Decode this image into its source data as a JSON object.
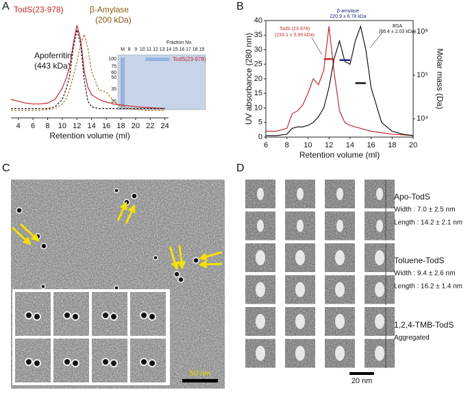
{
  "panel_labels": [
    "A",
    "B",
    "C",
    "D"
  ],
  "chart_data": [
    {
      "type": "line",
      "xlabel": "Retention volume (ml)",
      "x": [
        3,
        4,
        5,
        6,
        7,
        8,
        9,
        10,
        10.5,
        11,
        11.5,
        12,
        12.5,
        13,
        13.5,
        14,
        15,
        16,
        17,
        18,
        20,
        22,
        24
      ],
      "xlim": [
        3,
        24.5
      ],
      "xticks": [
        4,
        6,
        8,
        10,
        12,
        14,
        16,
        18,
        20,
        22,
        24
      ],
      "ylim": [
        0,
        1.05
      ],
      "series": [
        {
          "color": "#c0282d",
          "line_style": "solid",
          "values": [
            0.2,
            0.18,
            0.16,
            0.15,
            0.15,
            0.16,
            0.2,
            0.32,
            0.42,
            0.55,
            0.8,
            1.0,
            0.85,
            0.5,
            0.33,
            0.25,
            0.2,
            0.17,
            0.15,
            0.14,
            0.12,
            0.11,
            0.1
          ]
        },
        {
          "color": "#111111",
          "line_style": "dashed",
          "values": [
            0.1,
            0.1,
            0.1,
            0.1,
            0.1,
            0.1,
            0.12,
            0.2,
            0.3,
            0.45,
            0.75,
            0.95,
            0.8,
            0.4,
            0.18,
            0.12,
            0.1,
            0.1,
            0.1,
            0.1,
            0.1,
            0.1,
            0.1
          ]
        },
        {
          "color": "#a8741a",
          "line_style": "dashed",
          "values": [
            0.08,
            0.08,
            0.08,
            0.08,
            0.08,
            0.09,
            0.1,
            0.15,
            0.2,
            0.3,
            0.45,
            0.6,
            0.8,
            0.9,
            0.75,
            0.5,
            0.3,
            0.28,
            0.18,
            0.12,
            0.09,
            0.08,
            0.08
          ]
        }
      ],
      "annotations": [
        "TodS(23-978)",
        "β-Amylase",
        "(200 kDa)",
        "Apoferritin",
        "(443 kDa)"
      ],
      "gel": {
        "title": "Fraction No.",
        "lanes": [
          "M",
          "8",
          "9",
          "10",
          "11",
          "12",
          "13",
          "14",
          "15",
          "16",
          "17",
          "18",
          "19"
        ],
        "markers": [
          "100",
          "75",
          "60",
          "50",
          "35",
          "25"
        ],
        "label": "TodS(23-978)"
      }
    },
    {
      "type": "line",
      "xlabel": "Retention volume (ml)",
      "ylabel": "UV absorbance (280 nm)",
      "y2label": "Molar mass (Da)",
      "x": [
        6,
        7,
        8,
        8.5,
        9,
        9.5,
        10,
        10.5,
        11,
        11.5,
        12,
        12.5,
        13,
        13.5,
        14,
        14.5,
        15,
        15.5,
        16,
        17,
        18,
        19,
        20
      ],
      "xlim": [
        6,
        20
      ],
      "xticks": [
        6,
        8,
        10,
        12,
        14,
        16,
        18,
        20
      ],
      "ylim": [
        0,
        40
      ],
      "yticks": [
        0,
        5,
        10,
        15,
        20,
        25,
        30,
        35,
        40
      ],
      "y2lim": [
        3800,
        1780000
      ],
      "y2_scale": "log",
      "y2ticks": [
        {
          "value": 10000,
          "label": "10⁴"
        },
        {
          "value": 100000,
          "label": "10⁵"
        },
        {
          "value": 1000000,
          "label": "10⁶"
        }
      ],
      "series": [
        {
          "color": "#c0282d",
          "line_style": "solid",
          "values": [
            2,
            2,
            3,
            8,
            9,
            11,
            15,
            20,
            18,
            23,
            38,
            22,
            9,
            5,
            4,
            3.5,
            3,
            2.5,
            2,
            1.5,
            1,
            0.8,
            0.5
          ]
        },
        {
          "color": "#111111",
          "line_style": "solid",
          "values": [
            0.5,
            0.5,
            1,
            3,
            3.5,
            3.5,
            4,
            5,
            7,
            10,
            17,
            27,
            33,
            26,
            25,
            33,
            38,
            30,
            17,
            5,
            2,
            1,
            0.5
          ]
        },
        {
          "color": "#c0282d",
          "line_style": "solid",
          "axis": "y2",
          "values": [
            null,
            null,
            null,
            null,
            null,
            null,
            null,
            null,
            null,
            233000,
            233000,
            233000,
            null,
            null,
            null,
            null,
            null,
            null,
            null,
            null,
            null,
            null,
            null
          ]
        },
        {
          "color": "#1a237e",
          "line_style": "solid",
          "axis": "y2",
          "values": [
            null,
            null,
            null,
            null,
            null,
            null,
            null,
            null,
            null,
            null,
            null,
            null,
            221000,
            221000,
            221000,
            null,
            null,
            null,
            null,
            null,
            null,
            null,
            null
          ]
        },
        {
          "color": "#111111",
          "line_style": "solid",
          "axis": "y2",
          "values": [
            null,
            null,
            null,
            null,
            null,
            null,
            null,
            null,
            null,
            null,
            null,
            null,
            null,
            null,
            null,
            65400,
            65400,
            65400,
            null,
            null,
            null,
            null,
            null
          ]
        }
      ],
      "annotations": [
        "TodS (23-978)",
        "(233.1 ± 5.99 kDa)",
        "β-amylase",
        "220.9 ± 6.78 kDa",
        "BSA",
        "(65.4 ± 2.03 kDa)"
      ]
    }
  ],
  "panel_c": {
    "scale_bar": "50 nm"
  },
  "panel_d": {
    "groups": [
      {
        "name": "Apo-TodS",
        "lines": [
          "Width : 7.0 ± 2.5 nm",
          "Length : 14.2 ± 2.1 nm"
        ]
      },
      {
        "name": "Toluene-TodS",
        "lines": [
          "Width : 9.4 ± 2.6 nm",
          "Length : 16.2 ± 1.4 nm"
        ]
      },
      {
        "name": "1,2,4-TMB-TodS",
        "lines": [
          "Aggregated"
        ]
      }
    ],
    "scale_bar": "20 nm"
  }
}
